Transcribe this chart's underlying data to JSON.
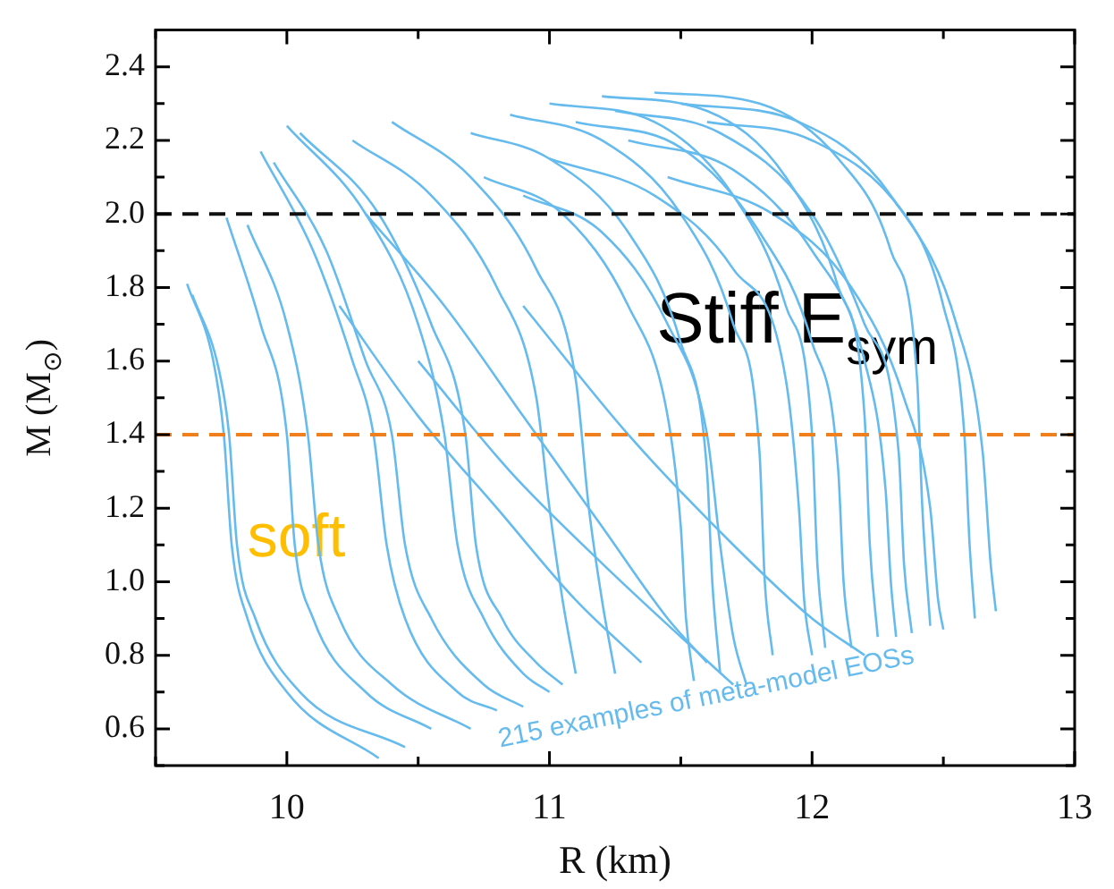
{
  "chart_data": {
    "type": "line",
    "xlabel": "R (km)",
    "ylabel": "M (M$_{⊙}$)",
    "xlim": [
      9.5,
      13
    ],
    "ylim": [
      0.5,
      2.5
    ],
    "xticks": [
      {
        "value": 9.5,
        "label": null
      },
      10,
      {
        "value": 10.5,
        "label": null
      },
      11,
      {
        "value": 11.5,
        "label": null
      },
      12,
      {
        "value": 12.5,
        "label": null
      },
      13
    ],
    "yticks": [
      {
        "value": 0.5,
        "label": null
      },
      0.6,
      {
        "value": 0.7,
        "label": null
      },
      0.8,
      {
        "value": 0.9,
        "label": null
      },
      {
        "value": 1.0,
        "label": "1.0"
      },
      {
        "value": 1.1,
        "label": null
      },
      1.2,
      {
        "value": 1.3,
        "label": null
      },
      1.4,
      {
        "value": 1.5,
        "label": null
      },
      1.6,
      {
        "value": 1.7,
        "label": null
      },
      1.8,
      {
        "value": 1.9,
        "label": null
      },
      {
        "value": 2.0,
        "label": "2.0"
      },
      {
        "value": 2.1,
        "label": null
      },
      2.2,
      {
        "value": 2.3,
        "label": null
      },
      2.4
    ],
    "grid": false,
    "legend": false,
    "marker": "none",
    "line_style": "solid",
    "ref_lines": [
      {
        "axis": "y",
        "value": 2.0,
        "color": "#111111",
        "line_style": "dashed"
      },
      {
        "axis": "y",
        "value": 1.4,
        "color": "#f07f1e",
        "line_style": "dashed"
      }
    ],
    "annotations": [
      "Stiff E$_{sym}$",
      "soft",
      "215 examples of meta-model EOSs"
    ],
    "series": [
      {
        "color": "#66bbee",
        "x": [
          9.62,
          9.72,
          9.76,
          9.79,
          9.85,
          10.0,
          10.35
        ],
        "values": [
          1.81,
          1.6,
          1.4,
          1.1,
          0.9,
          0.7,
          0.52
        ]
      },
      {
        "color": "#66bbee",
        "x": [
          9.64,
          9.74,
          9.78,
          9.81,
          9.88,
          10.05,
          10.45
        ],
        "values": [
          1.78,
          1.58,
          1.4,
          1.1,
          0.9,
          0.7,
          0.55
        ]
      },
      {
        "color": "#66bbee",
        "x": [
          9.77,
          9.9,
          10.0,
          10.03,
          10.1,
          10.3,
          10.55
        ],
        "values": [
          1.99,
          1.7,
          1.4,
          1.1,
          0.9,
          0.7,
          0.6
        ]
      },
      {
        "color": "#66bbee",
        "x": [
          9.85,
          10.0,
          10.08,
          10.12,
          10.2,
          10.4,
          10.7
        ],
        "values": [
          1.97,
          1.7,
          1.4,
          1.1,
          0.9,
          0.72,
          0.6
        ]
      },
      {
        "color": "#66bbee",
        "x": [
          9.9,
          10.1,
          10.25,
          10.33,
          10.38,
          10.45,
          10.65,
          10.8
        ],
        "values": [
          2.17,
          1.9,
          1.6,
          1.4,
          1.1,
          0.9,
          0.7,
          0.65
        ]
      },
      {
        "color": "#66bbee",
        "x": [
          9.95,
          10.15,
          10.3,
          10.4,
          10.45,
          10.55,
          10.75,
          10.9
        ],
        "values": [
          2.14,
          1.9,
          1.6,
          1.4,
          1.1,
          0.9,
          0.72,
          0.66
        ]
      },
      {
        "color": "#66bbee",
        "x": [
          10.0,
          10.3,
          10.5,
          10.6,
          10.65,
          10.75,
          10.9,
          11.0
        ],
        "values": [
          2.24,
          2.0,
          1.7,
          1.4,
          1.1,
          0.9,
          0.75,
          0.7
        ]
      },
      {
        "color": "#66bbee",
        "x": [
          10.05,
          10.35,
          10.55,
          10.68,
          10.72,
          10.82,
          10.95,
          11.05
        ],
        "values": [
          2.22,
          2.0,
          1.7,
          1.4,
          1.1,
          0.9,
          0.78,
          0.72
        ]
      },
      {
        "color": "#66bbee",
        "x": [
          10.25,
          10.55,
          10.8,
          10.95,
          11.0,
          11.05,
          11.1
        ],
        "values": [
          2.2,
          2.05,
          1.8,
          1.5,
          1.2,
          0.95,
          0.75
        ]
      },
      {
        "color": "#66bbee",
        "x": [
          10.4,
          10.7,
          10.95,
          11.1,
          11.15,
          11.2,
          11.25
        ],
        "values": [
          2.25,
          2.1,
          1.85,
          1.55,
          1.2,
          0.95,
          0.75
        ]
      },
      {
        "color": "#66bbee",
        "x": [
          10.2,
          10.5,
          10.8,
          11.1,
          11.35
        ],
        "values": [
          1.75,
          1.45,
          1.2,
          0.95,
          0.78
        ]
      },
      {
        "color": "#66bbee",
        "x": [
          10.5,
          10.85,
          11.2,
          11.5,
          11.7
        ],
        "values": [
          1.6,
          1.3,
          1.05,
          0.85,
          0.72
        ]
      },
      {
        "color": "#66bbee",
        "x": [
          10.7,
          11.0,
          11.3,
          11.5,
          11.6,
          11.62,
          11.65
        ],
        "values": [
          2.22,
          2.15,
          1.95,
          1.65,
          1.3,
          1.0,
          0.75
        ]
      },
      {
        "color": "#66bbee",
        "x": [
          10.85,
          11.2,
          11.5,
          11.7,
          11.8,
          11.82,
          11.85
        ],
        "values": [
          2.27,
          2.2,
          2.0,
          1.7,
          1.35,
          1.0,
          0.8
        ]
      },
      {
        "color": "#66bbee",
        "x": [
          11.0,
          11.4,
          11.7,
          11.9,
          12.0,
          12.02,
          12.05
        ],
        "values": [
          2.3,
          2.25,
          2.05,
          1.75,
          1.4,
          1.05,
          0.82
        ]
      },
      {
        "color": "#66bbee",
        "x": [
          11.2,
          11.6,
          11.9,
          12.1,
          12.2,
          12.22,
          12.25
        ],
        "values": [
          2.32,
          2.28,
          2.1,
          1.8,
          1.45,
          1.1,
          0.85
        ]
      },
      {
        "color": "#66bbee",
        "x": [
          11.4,
          11.8,
          12.1,
          12.3,
          12.4,
          12.42,
          12.45
        ],
        "values": [
          2.33,
          2.3,
          2.15,
          1.9,
          1.55,
          1.2,
          0.88
        ]
      },
      {
        "color": "#66bbee",
        "x": [
          11.5,
          11.95,
          12.3,
          12.5,
          12.58,
          12.6,
          12.62
        ],
        "values": [
          2.3,
          2.25,
          2.05,
          1.75,
          1.4,
          1.1,
          0.9
        ]
      },
      {
        "color": "#66bbee",
        "x": [
          11.0,
          11.4,
          11.7,
          11.9,
          11.95,
          11.97,
          12.0
        ],
        "values": [
          2.15,
          2.05,
          1.85,
          1.55,
          1.2,
          0.95,
          0.8
        ]
      },
      {
        "color": "#66bbee",
        "x": [
          11.3,
          11.7,
          12.0,
          12.2,
          12.28,
          12.3,
          12.32
        ],
        "values": [
          2.2,
          2.12,
          1.9,
          1.6,
          1.25,
          1.0,
          0.85
        ]
      },
      {
        "color": "#66bbee",
        "x": [
          10.9,
          11.2,
          11.45,
          11.6,
          11.65,
          11.7,
          11.75
        ],
        "values": [
          2.05,
          1.95,
          1.7,
          1.4,
          1.1,
          0.85,
          0.72
        ]
      },
      {
        "color": "#66bbee",
        "x": [
          11.6,
          12.0,
          12.35,
          12.55,
          12.65,
          12.68,
          12.7
        ],
        "values": [
          2.25,
          2.2,
          2.0,
          1.7,
          1.35,
          1.05,
          0.92
        ]
      },
      {
        "color": "#66bbee",
        "x": [
          11.1,
          11.5,
          11.8,
          12.0,
          12.1,
          12.12,
          12.15
        ],
        "values": [
          2.25,
          2.18,
          1.95,
          1.65,
          1.3,
          1.0,
          0.82
        ]
      },
      {
        "color": "#66bbee",
        "x": [
          10.75,
          11.05,
          11.3,
          11.45,
          11.5,
          11.52,
          11.55
        ],
        "values": [
          2.1,
          2.0,
          1.75,
          1.45,
          1.15,
          0.9,
          0.73
        ]
      },
      {
        "color": "#66bbee",
        "x": [
          11.25,
          11.65,
          12.0,
          12.2,
          12.33,
          12.35,
          12.38
        ],
        "values": [
          2.28,
          2.22,
          2.0,
          1.7,
          1.35,
          1.05,
          0.86
        ]
      },
      {
        "color": "#66bbee",
        "x": [
          10.9,
          11.3,
          11.7,
          12.0,
          12.2
        ],
        "values": [
          1.75,
          1.4,
          1.1,
          0.9,
          0.8
        ]
      },
      {
        "color": "#66bbee",
        "x": [
          10.3,
          10.6,
          10.9,
          11.2,
          11.45,
          11.6
        ],
        "values": [
          2.0,
          1.75,
          1.45,
          1.15,
          0.9,
          0.78
        ]
      },
      {
        "color": "#66bbee",
        "x": [
          11.45,
          11.85,
          12.15,
          12.35,
          12.45,
          12.48,
          12.5
        ],
        "values": [
          2.1,
          2.0,
          1.8,
          1.5,
          1.2,
          0.95,
          0.87
        ]
      }
    ]
  }
}
